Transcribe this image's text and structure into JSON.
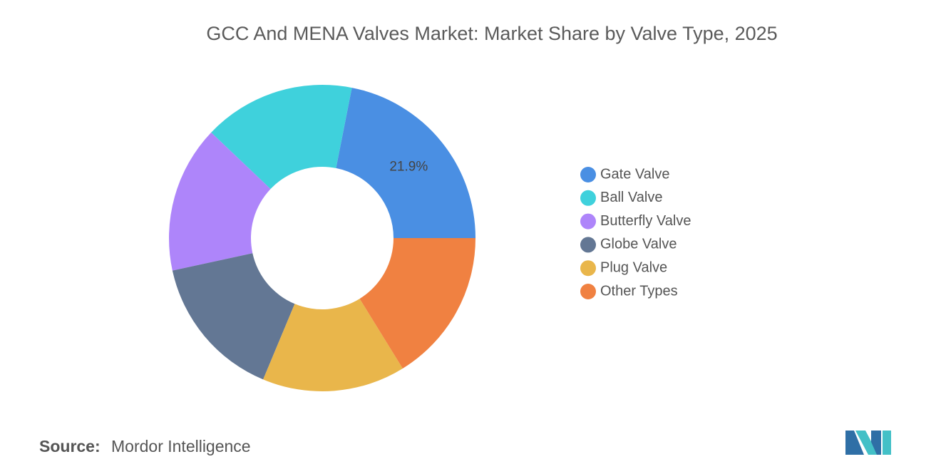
{
  "chart_data": {
    "type": "donut",
    "title": "GCC And MENA Valves Market: Market Share by Valve Type, 2025",
    "categories": [
      "Gate Valve",
      "Ball Valve",
      "Butterfly Valve",
      "Globe Valve",
      "Plug Valve",
      "Other Types"
    ],
    "values": [
      21.9,
      16.0,
      15.5,
      15.3,
      15.1,
      16.2
    ],
    "value_labels": [
      "21.9%",
      null,
      null,
      null,
      null,
      null
    ],
    "colors": [
      "#4a8fe3",
      "#3fd1dc",
      "#ae85fa",
      "#637794",
      "#e9b64b",
      "#f08141"
    ],
    "legend": "right",
    "source_label": "Source:",
    "source": "Mordor Intelligence"
  }
}
